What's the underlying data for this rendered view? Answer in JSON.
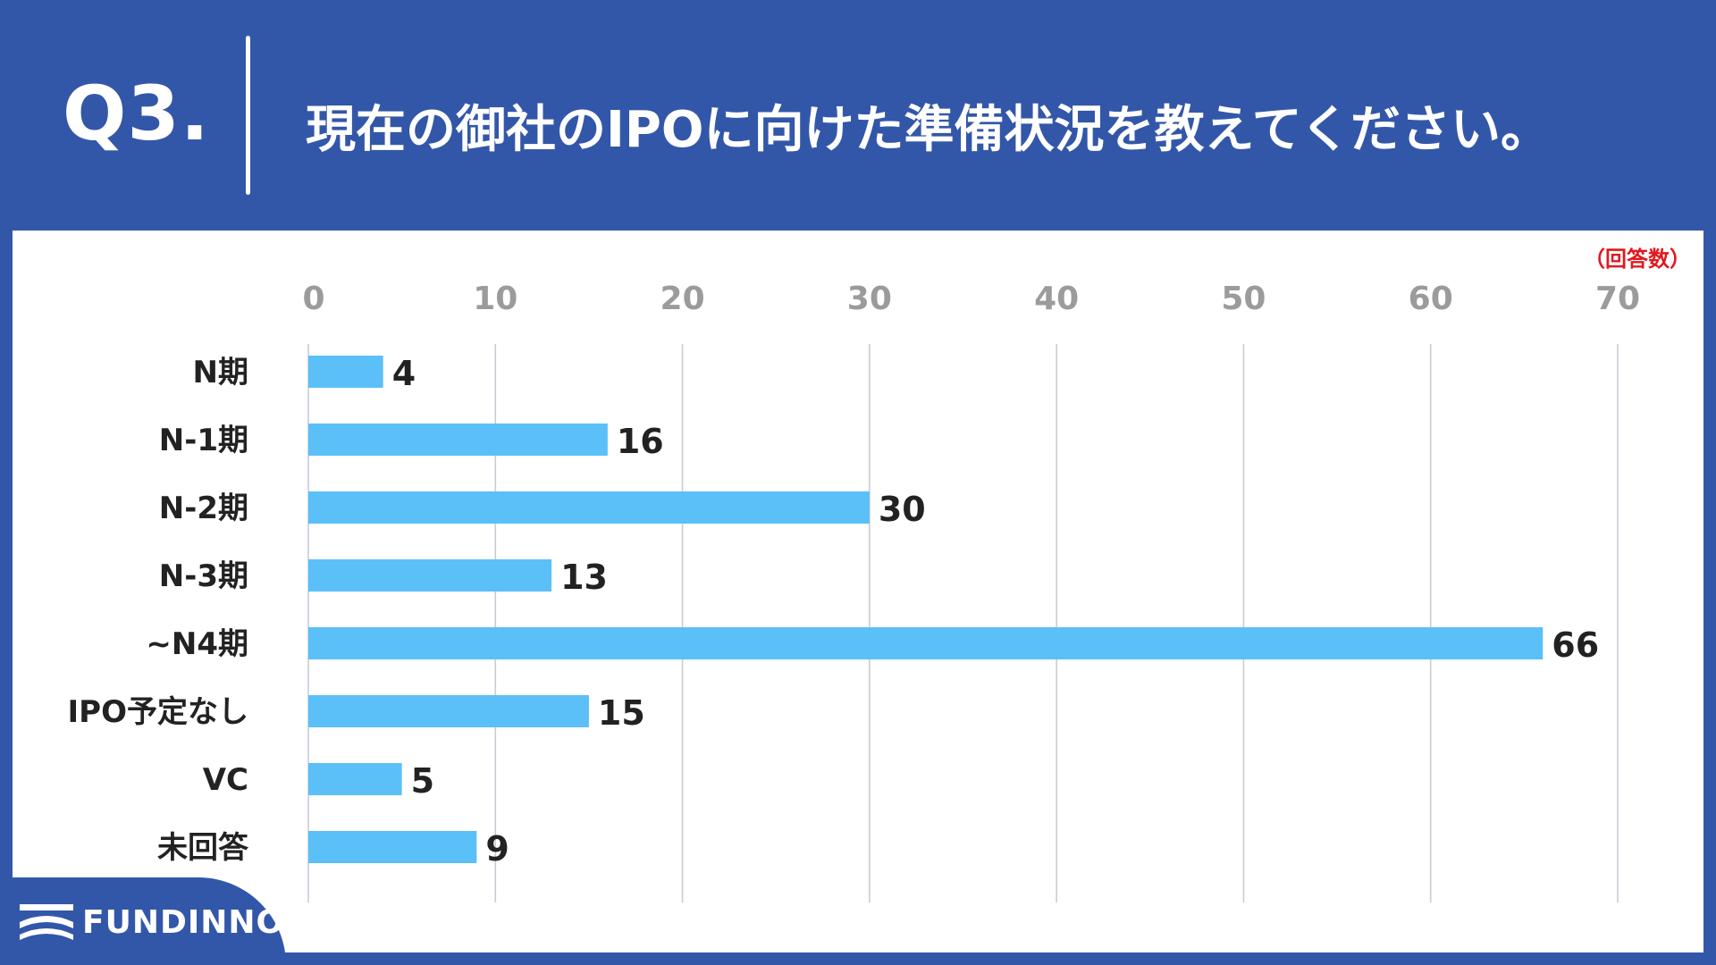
{
  "header": {
    "question_number": "Q3.",
    "question_text": "現在の御社のIPOに向けた準備状況を教えてください。"
  },
  "unit_label": "（回答数）",
  "logo": {
    "text": "FUNDINNO",
    "icon": "fundinno-logo-icon"
  },
  "colors": {
    "background": "#3357A8",
    "bar": "#5BBFF8",
    "unit_label": "#E0191F",
    "tick_label": "#9B9B9B"
  },
  "chart_data": {
    "type": "bar",
    "orientation": "horizontal",
    "title": "現在の御社のIPOに向けた準備状況を教えてください。",
    "xlabel": "（回答数）",
    "ylabel": "",
    "categories": [
      "N期",
      "N-1期",
      "N-2期",
      "N-3期",
      "~N4期",
      "IPO予定なし",
      "VC",
      "未回答"
    ],
    "values": [
      4,
      16,
      30,
      13,
      66,
      15,
      5,
      9
    ],
    "xlim": [
      0,
      70
    ],
    "ticks": [
      0,
      10,
      20,
      30,
      40,
      50,
      60,
      70
    ],
    "grid": true,
    "axis_position": "top"
  }
}
